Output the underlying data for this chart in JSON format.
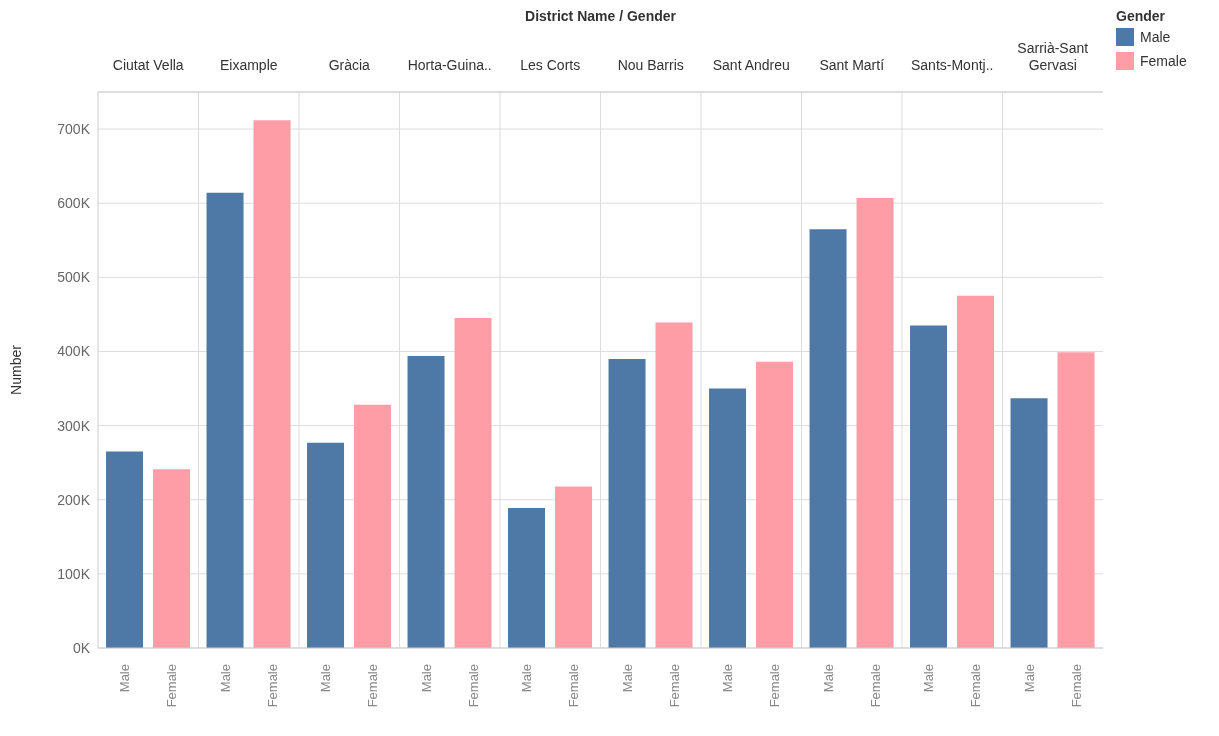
{
  "chart_data": {
    "type": "bar",
    "xlabel": "District Name / Gender",
    "ylabel": "Number",
    "legend_title": "Gender",
    "legend": "top right",
    "grid": "y",
    "categories": [
      "Ciutat Vella",
      "Eixample",
      "Gràcia",
      "Horta-Guina..",
      "Les Corts",
      "Nou Barris",
      "Sant Andreu",
      "Sant Martí",
      "Sants-Montj..",
      "Sarrià-Sant Gervasi"
    ],
    "series": [
      {
        "name": "Male",
        "color": "#4e79a7",
        "values": [
          265000,
          614000,
          277000,
          394000,
          189000,
          390000,
          350000,
          565000,
          435000,
          337000
        ]
      },
      {
        "name": "Female",
        "color": "#ff9da7",
        "values": [
          241000,
          712000,
          328000,
          445000,
          218000,
          439000,
          386000,
          607000,
          475000,
          399000
        ]
      }
    ],
    "ylim": [
      0,
      750000
    ],
    "yticks": [
      {
        "value": 0,
        "label": "0K"
      },
      {
        "value": 100000,
        "label": "100K"
      },
      {
        "value": 200000,
        "label": "200K"
      },
      {
        "value": 300000,
        "label": "300K"
      },
      {
        "value": 400000,
        "label": "400K"
      },
      {
        "value": 500000,
        "label": "500K"
      },
      {
        "value": 600000,
        "label": "600K"
      },
      {
        "value": 700000,
        "label": "700K"
      }
    ]
  }
}
